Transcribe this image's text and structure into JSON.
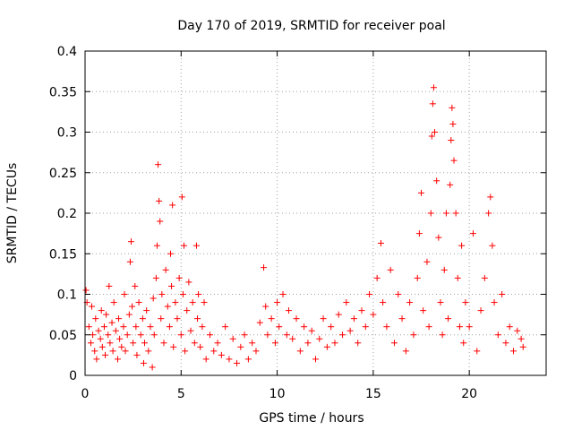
{
  "chart_data": {
    "type": "scatter",
    "title": "Day 170 of 2019, SRMTID for receiver poal",
    "xlabel": "GPS time / hours",
    "ylabel": "SRMTID / TECUs",
    "xlim": [
      0,
      24
    ],
    "ylim": [
      0,
      0.4
    ],
    "x_ticks": [
      0,
      5,
      10,
      15,
      20
    ],
    "x_tick_labels": [
      "0",
      "5",
      "10",
      "15",
      "20"
    ],
    "y_ticks": [
      0,
      0.05,
      0.1,
      0.15,
      0.2,
      0.25,
      0.3,
      0.35,
      0.4
    ],
    "y_tick_labels": [
      "0",
      "0.05",
      "0.1",
      "0.15",
      "0.2",
      "0.25",
      "0.3",
      "0.35",
      "0.4"
    ],
    "grid": true,
    "marker": "+",
    "marker_color": "#ff0000",
    "series": [
      {
        "name": "SRMTID",
        "points": [
          [
            0.05,
            0.105
          ],
          [
            0.1,
            0.09
          ],
          [
            0.2,
            0.06
          ],
          [
            0.3,
            0.04
          ],
          [
            0.35,
            0.085
          ],
          [
            0.4,
            0.05
          ],
          [
            0.5,
            0.03
          ],
          [
            0.55,
            0.07
          ],
          [
            0.6,
            0.02
          ],
          [
            0.7,
            0.055
          ],
          [
            0.8,
            0.045
          ],
          [
            0.85,
            0.08
          ],
          [
            0.9,
            0.035
          ],
          [
            1.0,
            0.06
          ],
          [
            1.05,
            0.025
          ],
          [
            1.1,
            0.075
          ],
          [
            1.2,
            0.05
          ],
          [
            1.25,
            0.11
          ],
          [
            1.3,
            0.04
          ],
          [
            1.4,
            0.065
          ],
          [
            1.45,
            0.03
          ],
          [
            1.5,
            0.09
          ],
          [
            1.6,
            0.055
          ],
          [
            1.7,
            0.02
          ],
          [
            1.75,
            0.07
          ],
          [
            1.8,
            0.045
          ],
          [
            1.9,
            0.035
          ],
          [
            2.0,
            0.06
          ],
          [
            2.05,
            0.1
          ],
          [
            2.1,
            0.03
          ],
          [
            2.2,
            0.05
          ],
          [
            2.3,
            0.075
          ],
          [
            2.35,
            0.14
          ],
          [
            2.4,
            0.165
          ],
          [
            2.45,
            0.085
          ],
          [
            2.5,
            0.04
          ],
          [
            2.6,
            0.11
          ],
          [
            2.65,
            0.06
          ],
          [
            2.7,
            0.025
          ],
          [
            2.8,
            0.09
          ],
          [
            2.9,
            0.05
          ],
          [
            3.0,
            0.07
          ],
          [
            3.05,
            0.015
          ],
          [
            3.1,
            0.04
          ],
          [
            3.2,
            0.08
          ],
          [
            3.3,
            0.03
          ],
          [
            3.4,
            0.06
          ],
          [
            3.5,
            0.01
          ],
          [
            3.55,
            0.095
          ],
          [
            3.6,
            0.05
          ],
          [
            3.7,
            0.12
          ],
          [
            3.75,
            0.16
          ],
          [
            3.8,
            0.26
          ],
          [
            3.85,
            0.215
          ],
          [
            3.9,
            0.19
          ],
          [
            3.95,
            0.07
          ],
          [
            4.0,
            0.1
          ],
          [
            4.1,
            0.04
          ],
          [
            4.2,
            0.13
          ],
          [
            4.3,
            0.085
          ],
          [
            4.4,
            0.06
          ],
          [
            4.45,
            0.15
          ],
          [
            4.5,
            0.11
          ],
          [
            4.55,
            0.21
          ],
          [
            4.6,
            0.035
          ],
          [
            4.7,
            0.09
          ],
          [
            4.8,
            0.07
          ],
          [
            4.9,
            0.12
          ],
          [
            5.0,
            0.05
          ],
          [
            5.05,
            0.22
          ],
          [
            5.1,
            0.1
          ],
          [
            5.15,
            0.16
          ],
          [
            5.2,
            0.03
          ],
          [
            5.3,
            0.08
          ],
          [
            5.4,
            0.115
          ],
          [
            5.5,
            0.055
          ],
          [
            5.6,
            0.09
          ],
          [
            5.7,
            0.04
          ],
          [
            5.8,
            0.16
          ],
          [
            5.85,
            0.07
          ],
          [
            5.9,
            0.1
          ],
          [
            6.0,
            0.035
          ],
          [
            6.1,
            0.06
          ],
          [
            6.2,
            0.09
          ],
          [
            6.3,
            0.02
          ],
          [
            6.5,
            0.05
          ],
          [
            6.7,
            0.03
          ],
          [
            6.9,
            0.04
          ],
          [
            7.1,
            0.025
          ],
          [
            7.3,
            0.06
          ],
          [
            7.5,
            0.02
          ],
          [
            7.7,
            0.045
          ],
          [
            7.9,
            0.015
          ],
          [
            8.1,
            0.035
          ],
          [
            8.3,
            0.05
          ],
          [
            8.5,
            0.02
          ],
          [
            8.7,
            0.04
          ],
          [
            8.9,
            0.03
          ],
          [
            9.1,
            0.065
          ],
          [
            9.3,
            0.133
          ],
          [
            9.4,
            0.085
          ],
          [
            9.5,
            0.05
          ],
          [
            9.7,
            0.07
          ],
          [
            9.9,
            0.04
          ],
          [
            10.0,
            0.09
          ],
          [
            10.1,
            0.06
          ],
          [
            10.3,
            0.1
          ],
          [
            10.5,
            0.05
          ],
          [
            10.6,
            0.08
          ],
          [
            10.8,
            0.045
          ],
          [
            11.0,
            0.07
          ],
          [
            11.2,
            0.03
          ],
          [
            11.4,
            0.06
          ],
          [
            11.6,
            0.04
          ],
          [
            11.8,
            0.055
          ],
          [
            12.0,
            0.02
          ],
          [
            12.2,
            0.045
          ],
          [
            12.4,
            0.07
          ],
          [
            12.6,
            0.035
          ],
          [
            12.8,
            0.06
          ],
          [
            13.0,
            0.04
          ],
          [
            13.2,
            0.075
          ],
          [
            13.4,
            0.05
          ],
          [
            13.6,
            0.09
          ],
          [
            13.8,
            0.055
          ],
          [
            14.0,
            0.07
          ],
          [
            14.2,
            0.04
          ],
          [
            14.4,
            0.08
          ],
          [
            14.6,
            0.06
          ],
          [
            14.8,
            0.1
          ],
          [
            15.0,
            0.075
          ],
          [
            15.2,
            0.12
          ],
          [
            15.4,
            0.163
          ],
          [
            15.5,
            0.09
          ],
          [
            15.7,
            0.06
          ],
          [
            15.9,
            0.13
          ],
          [
            16.1,
            0.04
          ],
          [
            16.3,
            0.1
          ],
          [
            16.5,
            0.07
          ],
          [
            16.7,
            0.03
          ],
          [
            16.9,
            0.09
          ],
          [
            17.1,
            0.05
          ],
          [
            17.3,
            0.12
          ],
          [
            17.4,
            0.175
          ],
          [
            17.5,
            0.225
          ],
          [
            17.6,
            0.08
          ],
          [
            17.8,
            0.14
          ],
          [
            17.9,
            0.06
          ],
          [
            18.0,
            0.2
          ],
          [
            18.05,
            0.295
          ],
          [
            18.1,
            0.335
          ],
          [
            18.15,
            0.355
          ],
          [
            18.2,
            0.3
          ],
          [
            18.3,
            0.24
          ],
          [
            18.4,
            0.17
          ],
          [
            18.5,
            0.09
          ],
          [
            18.6,
            0.05
          ],
          [
            18.7,
            0.13
          ],
          [
            18.8,
            0.2
          ],
          [
            18.9,
            0.07
          ],
          [
            19.0,
            0.235
          ],
          [
            19.05,
            0.29
          ],
          [
            19.1,
            0.33
          ],
          [
            19.15,
            0.31
          ],
          [
            19.2,
            0.265
          ],
          [
            19.3,
            0.2
          ],
          [
            19.4,
            0.12
          ],
          [
            19.5,
            0.06
          ],
          [
            19.6,
            0.16
          ],
          [
            19.7,
            0.04
          ],
          [
            19.8,
            0.09
          ],
          [
            20.0,
            0.06
          ],
          [
            20.2,
            0.175
          ],
          [
            20.4,
            0.03
          ],
          [
            20.6,
            0.08
          ],
          [
            20.8,
            0.12
          ],
          [
            21.0,
            0.2
          ],
          [
            21.1,
            0.22
          ],
          [
            21.2,
            0.16
          ],
          [
            21.3,
            0.09
          ],
          [
            21.5,
            0.05
          ],
          [
            21.7,
            0.1
          ],
          [
            21.9,
            0.04
          ],
          [
            22.1,
            0.06
          ],
          [
            22.3,
            0.03
          ],
          [
            22.5,
            0.055
          ],
          [
            22.7,
            0.045
          ],
          [
            22.8,
            0.035
          ]
        ]
      }
    ]
  }
}
